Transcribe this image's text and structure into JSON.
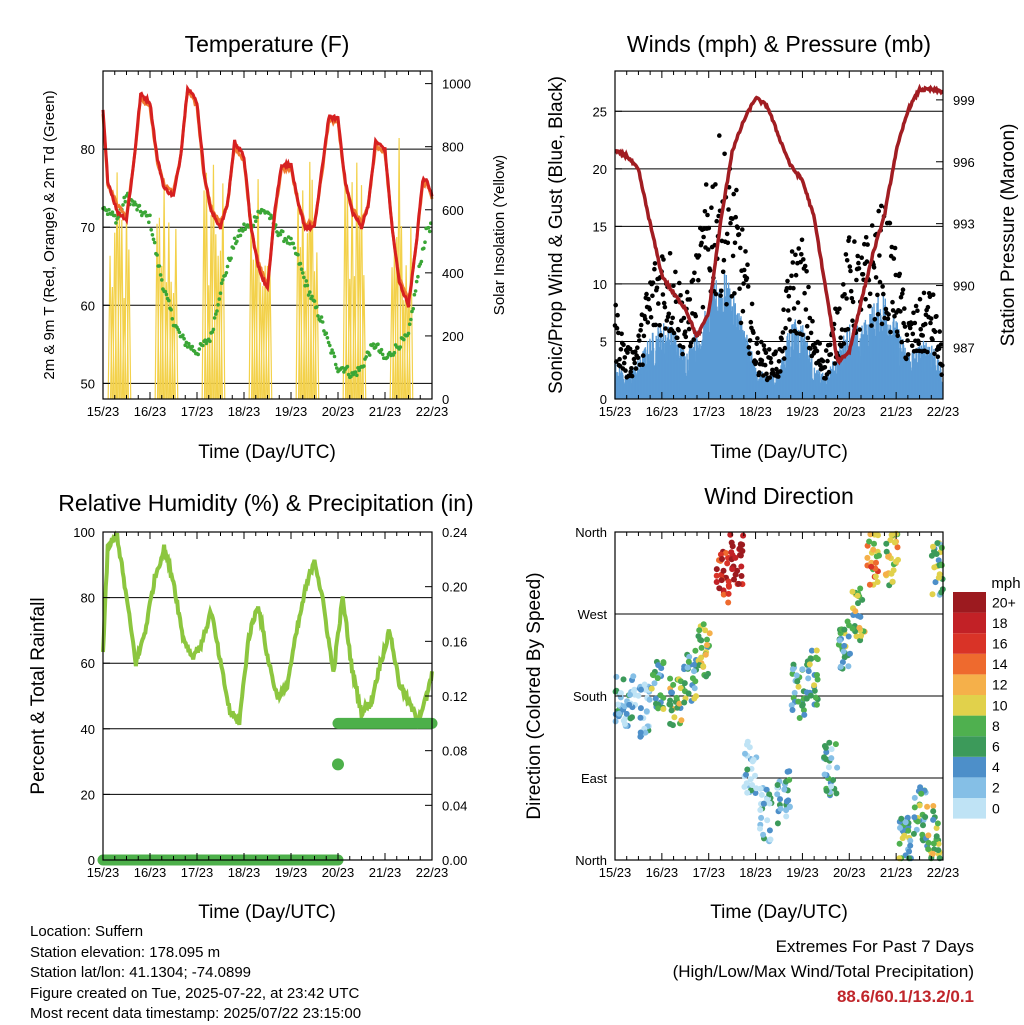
{
  "time_ticks": [
    "15/23",
    "16/23",
    "17/23",
    "18/23",
    "19/23",
    "20/23",
    "21/23",
    "22/23"
  ],
  "panels": {
    "temperature": {
      "title": "Temperature (F)",
      "xlabel": "Time (Day/UTC)",
      "ylabel_left": "2m & 9m T (Red, Orange) & 2m Td (Green)",
      "ylabel_right": "Solar Insolation (Yellow)",
      "yticks_left": [
        "50",
        "60",
        "70",
        "80"
      ],
      "yticks_right": [
        "0",
        "200",
        "400",
        "600",
        "800",
        "1000"
      ]
    },
    "winds": {
      "title": "Winds (mph) & Pressure (mb)",
      "xlabel": "Time (Day/UTC)",
      "ylabel_left": "Sonic/Prop Wind & Gust (Blue, Black)",
      "ylabel_right": "Station Pressure (Maroon)",
      "yticks_left": [
        "0",
        "5",
        "10",
        "15",
        "20",
        "25"
      ],
      "yticks_right": [
        "987",
        "990",
        "993",
        "996",
        "999"
      ]
    },
    "humidity": {
      "title": "Relative Humidity (%) & Precipitation (in)",
      "xlabel": "Time (Day/UTC)",
      "ylabel_left": "Percent & Total Rainfall",
      "yticks_left": [
        "0",
        "20",
        "40",
        "60",
        "80",
        "100"
      ],
      "yticks_right": [
        "0.00",
        "0.04",
        "0.08",
        "0.12",
        "0.16",
        "0.20",
        "0.24"
      ]
    },
    "direction": {
      "title": "Wind Direction",
      "xlabel": "Time (Day/UTC)",
      "ylabel_left": "Direction (Colored By Speed)",
      "yticks_left": [
        "North",
        "East",
        "South",
        "West",
        "North"
      ],
      "colorbar_title": "mph",
      "colorbar_labels": [
        "0",
        "2",
        "4",
        "6",
        "8",
        "10",
        "12",
        "14",
        "16",
        "18",
        "20+"
      ]
    }
  },
  "chart_data": [
    {
      "type": "line",
      "title": "Temperature (F)",
      "xlabel": "Time (Day/UTC)",
      "ylabel": "2m & 9m T (Red, Orange) & 2m Td (Green)",
      "ylabel_right": "Solar Insolation (Yellow)",
      "x_range": [
        "15/23",
        "22/23"
      ],
      "ylim": [
        48,
        90
      ],
      "ylim_right": [
        0,
        1040
      ],
      "grid": true,
      "x_days": [
        0,
        0.1,
        0.3,
        0.5,
        0.65,
        0.8,
        1.0,
        1.15,
        1.3,
        1.5,
        1.65,
        1.8,
        2.0,
        2.15,
        2.3,
        2.5,
        2.65,
        2.8,
        3.0,
        3.15,
        3.3,
        3.5,
        3.65,
        3.8,
        4.0,
        4.15,
        4.3,
        4.5,
        4.65,
        4.8,
        5.0,
        5.15,
        5.3,
        5.5,
        5.65,
        5.8,
        6.0,
        6.15,
        6.3,
        6.5,
        6.65,
        6.8,
        6.9,
        7.0
      ],
      "series": [
        {
          "name": "2m T",
          "color": "#d62020",
          "values": [
            85,
            76,
            72,
            71,
            78,
            87,
            86,
            79,
            75,
            74,
            79,
            88,
            86,
            77,
            72,
            70,
            73,
            81,
            79,
            70,
            65,
            62,
            72,
            78,
            78,
            73,
            70,
            70,
            77,
            84,
            84,
            76,
            72,
            70,
            73,
            81,
            80,
            70,
            63,
            60,
            67,
            76,
            76,
            74
          ]
        },
        {
          "name": "9m T",
          "color": "#f07a30",
          "values": [
            84.5,
            75.5,
            73,
            71.5,
            78,
            86.5,
            85.5,
            78.5,
            75.5,
            74.5,
            79,
            87.5,
            85.5,
            76.5,
            72.5,
            70.5,
            73,
            80.5,
            78.5,
            70,
            65.5,
            62.5,
            71.5,
            77.5,
            77.5,
            73,
            70.5,
            70.5,
            76.5,
            83.5,
            83.5,
            75.5,
            72.5,
            70.5,
            73,
            80.5,
            79.5,
            70,
            63.5,
            60.5,
            67,
            75.5,
            75.5,
            73.5
          ]
        },
        {
          "name": "2m Td",
          "color": "#3aa636",
          "values": [
            73,
            72,
            71,
            74,
            73,
            72,
            71,
            66,
            62,
            58,
            56,
            55,
            54,
            55,
            56,
            62,
            65,
            68,
            70,
            70,
            72,
            72,
            70,
            69,
            68,
            66,
            63,
            60,
            58,
            55,
            52,
            52,
            51,
            52,
            54,
            55,
            53,
            54,
            55,
            56,
            62,
            67,
            70,
            70
          ]
        }
      ],
      "solar_peaks": [
        {
          "x": 0.35,
          "value": 730
        },
        {
          "x": 1.35,
          "value": 780
        },
        {
          "x": 2.35,
          "value": 900
        },
        {
          "x": 3.35,
          "value": 800
        },
        {
          "x": 4.35,
          "value": 830
        },
        {
          "x": 5.35,
          "value": 950
        },
        {
          "x": 6.35,
          "value": 870
        }
      ],
      "solar_color": "#f3d14a"
    },
    {
      "type": "line",
      "title": "Winds (mph) & Pressure (mb)",
      "xlabel": "Time (Day/UTC)",
      "ylabel": "Sonic/Prop Wind & Gust (Blue, Black)",
      "ylabel_right": "Station Pressure (Maroon)",
      "ylim": [
        0,
        28.5
      ],
      "ylim_right": [
        984.5,
        1000.4
      ],
      "grid": true,
      "x_days": [
        0,
        0.25,
        0.5,
        0.75,
        1.0,
        1.25,
        1.5,
        1.75,
        2.0,
        2.25,
        2.5,
        2.75,
        3.0,
        3.25,
        3.5,
        3.75,
        4.0,
        4.25,
        4.5,
        4.75,
        5.0,
        5.25,
        5.5,
        5.75,
        6.0,
        6.25,
        6.5,
        6.75,
        7.0
      ],
      "series": [
        {
          "name": "Sonic/Prop Wind",
          "color": "#5a9bd5",
          "values": [
            2.5,
            1.5,
            2.5,
            4,
            5,
            4.5,
            3,
            4.5,
            6,
            8.5,
            7,
            5,
            2,
            1.5,
            1.8,
            5,
            5,
            2,
            1.5,
            3,
            5,
            4.5,
            6,
            7,
            5,
            3,
            3.5,
            4,
            1.5
          ]
        },
        {
          "name": "Gust",
          "color": "#000000",
          "values": [
            6,
            3,
            4,
            8,
            10,
            9,
            6,
            9,
            14,
            16,
            14,
            10,
            4,
            3,
            3,
            9,
            10,
            4,
            3,
            6,
            10,
            9,
            11,
            12,
            9,
            5,
            6,
            7,
            3
          ]
        },
        {
          "name": "Station Pressure",
          "color": "#a11d22",
          "values": [
            996.5,
            996.3,
            995.6,
            993,
            990.5,
            989.6,
            988.9,
            987.5,
            988.7,
            993,
            996.5,
            998,
            999.1,
            998.7,
            997.2,
            995.8,
            995.1,
            993.3,
            989.8,
            986.3,
            986.8,
            989.2,
            991.5,
            993.4,
            996.5,
            998.5,
            999.5,
            999.5,
            999.4
          ]
        }
      ]
    },
    {
      "type": "line",
      "title": "Relative Humidity (%) & Precipitation (in)",
      "xlabel": "Time (Day/UTC)",
      "ylabel": "Percent & Total Rainfall",
      "ylim": [
        0,
        100
      ],
      "ylim_right": [
        0,
        0.24
      ],
      "grid": true,
      "x_days": [
        0,
        0.1,
        0.3,
        0.5,
        0.7,
        0.9,
        1.1,
        1.3,
        1.5,
        1.7,
        1.9,
        2.1,
        2.3,
        2.5,
        2.7,
        2.9,
        3.1,
        3.3,
        3.5,
        3.7,
        3.9,
        4.1,
        4.3,
        4.5,
        4.7,
        4.9,
        5.1,
        5.3,
        5.5,
        5.7,
        5.9,
        6.1,
        6.3,
        6.5,
        6.7,
        6.9,
        7.0
      ],
      "series": [
        {
          "name": "Relative Humidity",
          "color": "#8cc63f",
          "values": [
            63,
            95,
            99,
            80,
            60,
            70,
            86,
            95,
            85,
            68,
            62,
            66,
            76,
            60,
            45,
            42,
            68,
            78,
            62,
            50,
            52,
            68,
            82,
            92,
            77,
            57,
            80,
            58,
            45,
            48,
            60,
            70,
            54,
            48,
            43,
            50,
            57
          ]
        },
        {
          "name": "Total Precipitation",
          "color": "#4db04a",
          "axis": "right",
          "points": [
            {
              "x": 0,
              "value": 0.0
            },
            {
              "x": 5.0,
              "value": 0.0
            },
            {
              "x": 5.0,
              "value": 0.07
            },
            {
              "x": 5.0,
              "value": 0.1
            },
            {
              "x": 7.0,
              "value": 0.1
            }
          ]
        }
      ]
    },
    {
      "type": "scatter",
      "title": "Wind Direction",
      "xlabel": "Time (Day/UTC)",
      "ylabel": "Direction (Colored By Speed)",
      "y_categories": [
        "North",
        "East",
        "South",
        "West",
        "North"
      ],
      "ylim": [
        0,
        360
      ],
      "colorbar": {
        "title": "mph",
        "labels": [
          "0",
          "2",
          "4",
          "6",
          "8",
          "10",
          "12",
          "14",
          "16",
          "18",
          "20+"
        ],
        "colors": [
          "#bfe3f5",
          "#85bfe6",
          "#4d8fc9",
          "#3c9a5a",
          "#4fb04f",
          "#e1d14b",
          "#f5b04a",
          "#ee6a2e",
          "#d93327",
          "#c22126",
          "#9c1a1f"
        ]
      },
      "clusters": [
        {
          "x": 0.0,
          "direction": 180,
          "speed": 2
        },
        {
          "x": 0.3,
          "direction": 175,
          "speed": 1
        },
        {
          "x": 0.6,
          "direction": 165,
          "speed": 1
        },
        {
          "x": 0.9,
          "direction": 190,
          "speed": 3
        },
        {
          "x": 1.3,
          "direction": 170,
          "speed": 4
        },
        {
          "x": 1.6,
          "direction": 200,
          "speed": 3
        },
        {
          "x": 1.9,
          "direction": 230,
          "speed": 4
        },
        {
          "x": 2.3,
          "direction": 310,
          "speed": 9
        },
        {
          "x": 2.6,
          "direction": 330,
          "speed": 10
        },
        {
          "x": 2.9,
          "direction": 100,
          "speed": 1
        },
        {
          "x": 3.2,
          "direction": 50,
          "speed": 1
        },
        {
          "x": 3.6,
          "direction": 70,
          "speed": 2
        },
        {
          "x": 3.9,
          "direction": 185,
          "speed": 3
        },
        {
          "x": 4.2,
          "direction": 200,
          "speed": 3
        },
        {
          "x": 4.6,
          "direction": 100,
          "speed": 2
        },
        {
          "x": 4.9,
          "direction": 240,
          "speed": 3
        },
        {
          "x": 5.2,
          "direction": 270,
          "speed": 4
        },
        {
          "x": 5.5,
          "direction": 330,
          "speed": 6
        },
        {
          "x": 5.9,
          "direction": 330,
          "speed": 5
        },
        {
          "x": 6.2,
          "direction": 20,
          "speed": 3
        },
        {
          "x": 6.5,
          "direction": 50,
          "speed": 3
        },
        {
          "x": 6.8,
          "direction": 30,
          "speed": 4
        },
        {
          "x": 6.9,
          "direction": 320,
          "speed": 3
        }
      ]
    }
  ],
  "info": {
    "location": "Location: Suffern",
    "elevation": "Station elevation: 178.095 m",
    "latlon": "Station lat/lon: 41.1304; -74.0899",
    "created": "Figure created on Tue, 2025-07-22, at 23:42 UTC",
    "recent": "Most recent data timestamp: 2025/07/22 23:15:00"
  },
  "extremes": {
    "title": "Extremes For Past 7 Days",
    "subtitle": "(High/Low/Max Wind/Total Precipitation)",
    "values": "88.6/60.1/13.2/0.1",
    "value_color": "#c0262b"
  }
}
